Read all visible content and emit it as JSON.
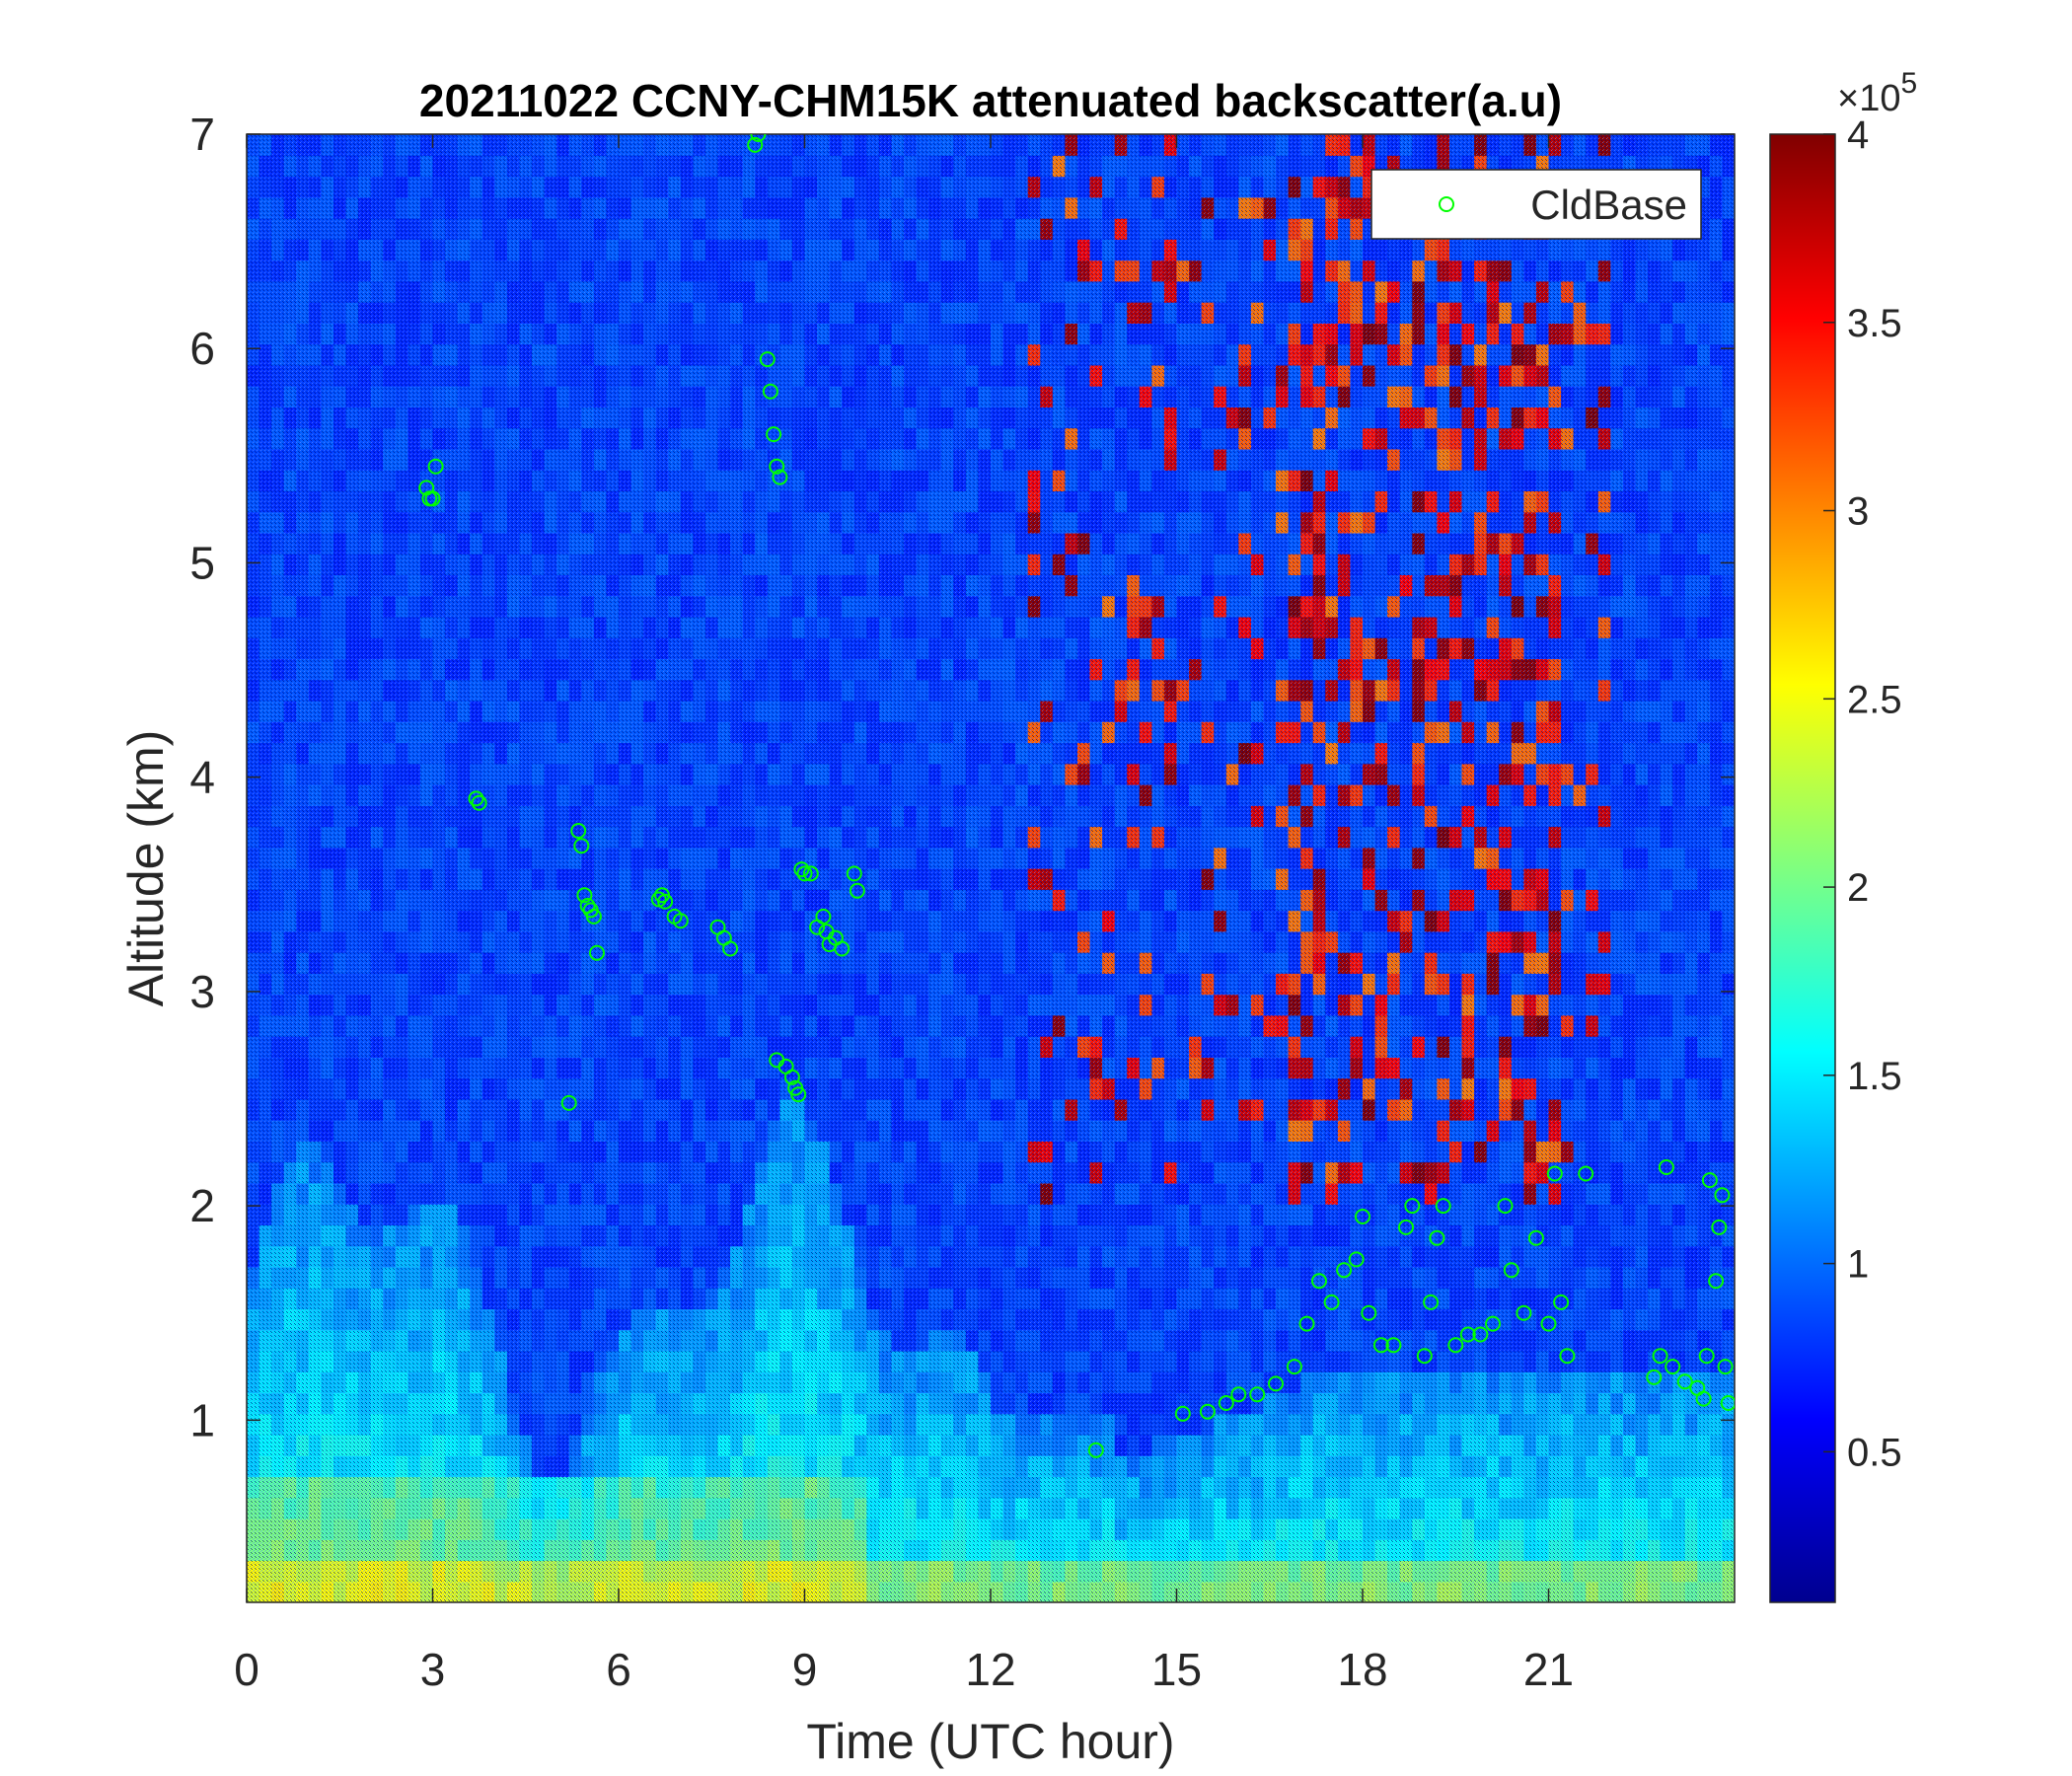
{
  "chart_data": {
    "type": "heatmap",
    "title": "20211022 CCNY-CHM15K attenuated backscatter(a.u)",
    "xlabel": "Time (UTC hour)",
    "ylabel": "Altitude (km)",
    "xlim": [
      0,
      24
    ],
    "ylim": [
      0.15,
      7
    ],
    "x_ticks": [
      0,
      3,
      6,
      9,
      12,
      15,
      18,
      21
    ],
    "y_ticks": [
      1,
      2,
      3,
      4,
      5,
      6,
      7
    ],
    "colorbar": {
      "colormap": "jet",
      "clim": [
        10000,
        400000
      ],
      "ticks": [
        0.5,
        1,
        1.5,
        2,
        2.5,
        3,
        3.5,
        4
      ],
      "tick_labels": [
        "0.5",
        "1",
        "1.5",
        "2",
        "2.5",
        "3",
        "3.5",
        "4"
      ],
      "multiplier_prefix": "×10",
      "multiplier_exp": "5"
    },
    "legend": {
      "position": "top-right",
      "entries": [
        "CldBase"
      ]
    },
    "marker_color": "#00ff00",
    "series": [
      {
        "name": "CldBase",
        "marker": "o",
        "x": [
          2.9,
          2.95,
          3.0,
          3.05,
          3.7,
          3.75,
          5.2,
          5.35,
          5.4,
          5.45,
          5.5,
          5.55,
          5.6,
          5.65,
          6.65,
          6.7,
          6.75,
          6.9,
          7.0,
          7.6,
          7.7,
          7.8,
          8.2,
          8.25,
          8.4,
          8.45,
          8.5,
          8.55,
          8.6,
          8.55,
          8.7,
          8.8,
          8.85,
          8.9,
          8.95,
          9.0,
          9.1,
          9.2,
          9.3,
          9.35,
          9.4,
          9.5,
          9.6,
          9.8,
          9.85,
          13.7,
          15.1,
          15.5,
          15.8,
          16.0,
          16.3,
          16.6,
          16.9,
          17.1,
          17.3,
          17.5,
          17.7,
          17.9,
          18.0,
          18.1,
          18.3,
          18.5,
          18.7,
          18.8,
          19.0,
          19.1,
          19.2,
          19.3,
          19.5,
          19.7,
          19.9,
          20.1,
          20.3,
          20.4,
          20.6,
          20.8,
          21.0,
          21.1,
          21.2,
          21.3,
          21.6,
          22.7,
          22.8,
          22.9,
          23.0,
          23.2,
          23.4,
          23.5,
          23.55,
          23.6,
          23.7,
          23.75,
          23.8,
          23.85,
          23.9
        ],
        "y": [
          5.35,
          5.3,
          5.3,
          5.45,
          3.9,
          3.88,
          2.48,
          3.75,
          3.68,
          3.45,
          3.4,
          3.38,
          3.35,
          3.18,
          3.43,
          3.45,
          3.42,
          3.35,
          3.33,
          3.3,
          3.25,
          3.2,
          6.95,
          7.0,
          5.95,
          5.8,
          5.6,
          5.45,
          5.4,
          2.68,
          2.65,
          2.6,
          2.55,
          2.52,
          3.57,
          3.55,
          3.55,
          3.3,
          3.35,
          3.28,
          3.22,
          3.25,
          3.2,
          3.55,
          3.47,
          0.86,
          1.03,
          1.04,
          1.08,
          1.12,
          1.12,
          1.17,
          1.25,
          1.45,
          1.65,
          1.55,
          1.7,
          1.75,
          1.95,
          1.5,
          1.35,
          1.35,
          1.9,
          2.0,
          1.3,
          1.55,
          1.85,
          2.0,
          1.35,
          1.4,
          1.4,
          1.45,
          2.0,
          1.7,
          1.5,
          1.85,
          1.45,
          2.15,
          1.55,
          1.3,
          2.15,
          1.2,
          1.3,
          2.18,
          1.25,
          1.18,
          1.15,
          1.1,
          1.3,
          2.12,
          1.65,
          1.9,
          2.05,
          1.25,
          1.08
        ]
      }
    ]
  }
}
